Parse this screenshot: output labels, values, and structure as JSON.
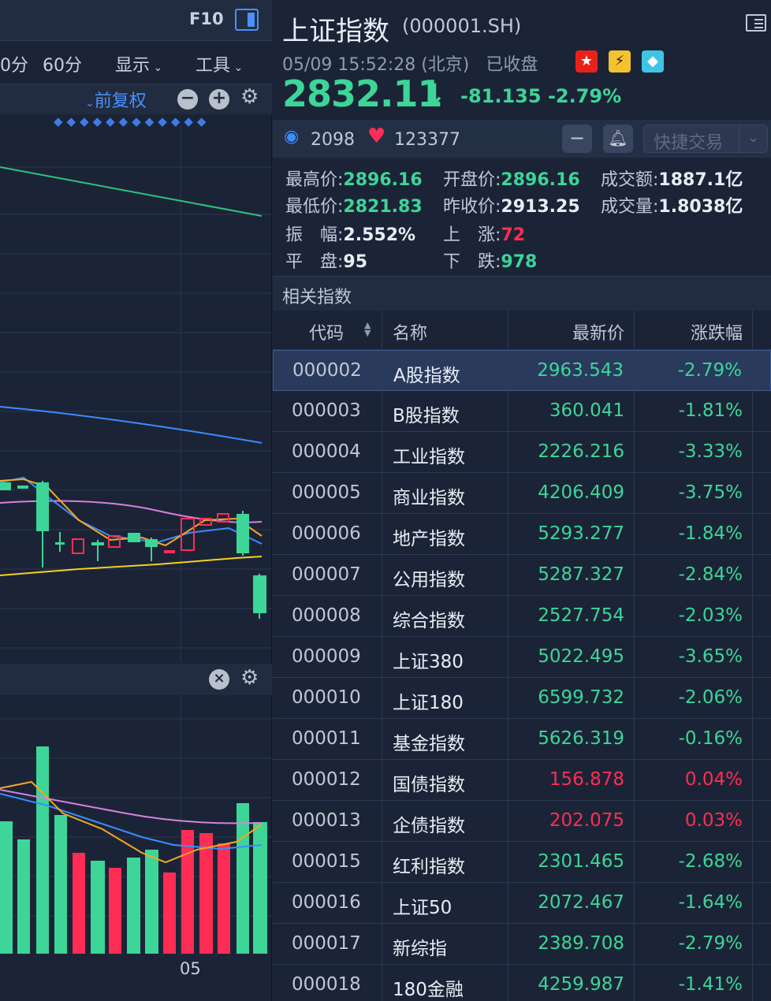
{
  "left": {
    "f10": "F10",
    "periods": [
      "0分",
      "60分"
    ],
    "menus": [
      "显示",
      "工具"
    ],
    "adjust": "前复权",
    "date_label": "05"
  },
  "header": {
    "title": "上证指数",
    "code": "(000001.SH)",
    "datetime": "05/09 15:52:28 (北京)",
    "status": "已收盘",
    "price": "2832.11",
    "change": "-81.135",
    "change_pct": "-2.79%",
    "views": "2098",
    "favorites": "123377",
    "trade_label": "快捷交易"
  },
  "stats": {
    "high_label": "最高价:",
    "high": "2896.16",
    "open_label": "开盘价:",
    "open": "2896.16",
    "amount_label": "成交额:",
    "amount": "1887.1亿",
    "low_label": "最低价:",
    "low": "2821.83",
    "prev_label": "昨收价:",
    "prev": "2913.25",
    "volume_label": "成交量:",
    "volume": "1.8038亿",
    "amp_label": "振　幅:",
    "amp": "2.552%",
    "up_label": "上　涨:",
    "up": "72",
    "flat_label": "平　盘:",
    "flat": "95",
    "down_label": "下　跌:",
    "down": "978"
  },
  "related": {
    "title": "相关指数",
    "headers": [
      "代码",
      "名称",
      "最新价",
      "涨跌幅"
    ],
    "rows": [
      {
        "code": "000002",
        "name": "A股指数",
        "price": "2963.543",
        "pct": "-2.79%",
        "dir": "down"
      },
      {
        "code": "000003",
        "name": "B股指数",
        "price": "360.041",
        "pct": "-1.81%",
        "dir": "down"
      },
      {
        "code": "000004",
        "name": "工业指数",
        "price": "2226.216",
        "pct": "-3.33%",
        "dir": "down"
      },
      {
        "code": "000005",
        "name": "商业指数",
        "price": "4206.409",
        "pct": "-3.75%",
        "dir": "down"
      },
      {
        "code": "000006",
        "name": "地产指数",
        "price": "5293.277",
        "pct": "-1.84%",
        "dir": "down"
      },
      {
        "code": "000007",
        "name": "公用指数",
        "price": "5287.327",
        "pct": "-2.84%",
        "dir": "down"
      },
      {
        "code": "000008",
        "name": "综合指数",
        "price": "2527.754",
        "pct": "-2.03%",
        "dir": "down"
      },
      {
        "code": "000009",
        "name": "上证380",
        "price": "5022.495",
        "pct": "-3.65%",
        "dir": "down"
      },
      {
        "code": "000010",
        "name": "上证180",
        "price": "6599.732",
        "pct": "-2.06%",
        "dir": "down"
      },
      {
        "code": "000011",
        "name": "基金指数",
        "price": "5626.319",
        "pct": "-0.16%",
        "dir": "down"
      },
      {
        "code": "000012",
        "name": "国债指数",
        "price": "156.878",
        "pct": "0.04%",
        "dir": "up"
      },
      {
        "code": "000013",
        "name": "企债指数",
        "price": "202.075",
        "pct": "0.03%",
        "dir": "up"
      },
      {
        "code": "000015",
        "name": "红利指数",
        "price": "2301.465",
        "pct": "-2.68%",
        "dir": "down"
      },
      {
        "code": "000016",
        "name": "上证50",
        "price": "2072.467",
        "pct": "-1.64%",
        "dir": "down"
      },
      {
        "code": "000017",
        "name": "新综指",
        "price": "2389.708",
        "pct": "-2.79%",
        "dir": "down"
      },
      {
        "code": "000018",
        "name": "180金融",
        "price": "4259.987",
        "pct": "-1.41%",
        "dir": "down"
      }
    ]
  },
  "colors": {
    "up": "#ff2d55",
    "down": "#3dd598",
    "accent": "#4a90ff"
  }
}
